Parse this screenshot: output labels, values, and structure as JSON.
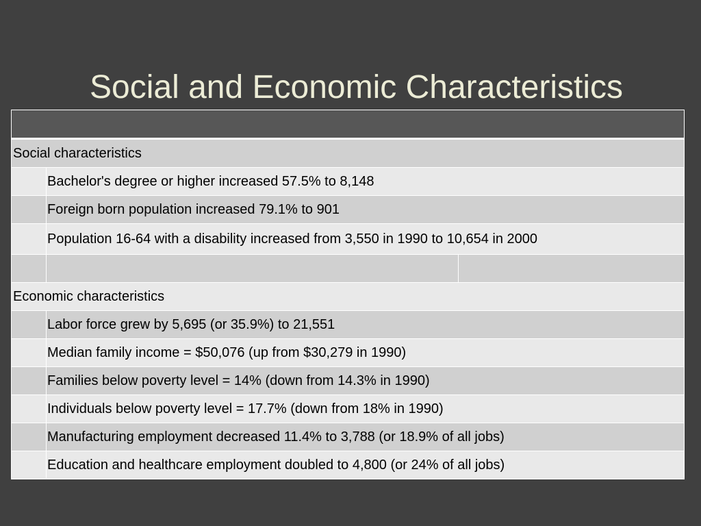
{
  "slide": {
    "title": "Social and Economic Characteristics"
  },
  "table": {
    "header": "",
    "sections": [
      {
        "label": "Social characteristics",
        "items": [
          "Bachelor's degree or higher increased 57.5% to 8,148",
          "Foreign born population increased 79.1% to 901",
          "Population 16-64 with a disability increased from 3,550 in 1990 to 10,654 in 2000"
        ]
      },
      {
        "label": "Economic characteristics",
        "items": [
          "Labor force grew by 5,695 (or 35.9%) to 21,551",
          "Median family income = $50,076 (up from $30,279 in 1990)",
          "Families below poverty level = 14% (down from 14.3% in 1990)",
          "Individuals below poverty level = 17.7% (down from 18% in 1990)",
          "Manufacturing employment decreased 11.4% to 3,788 (or 18.9% of all jobs)",
          "Education and healthcare employment doubled to 4,800 (or 24% of all jobs)"
        ]
      }
    ]
  },
  "colors": {
    "background": "#404040",
    "title": "#ececd6",
    "header_fill": "#575757",
    "row_dark": "#d0d0d0",
    "row_light": "#e9e9e9"
  }
}
